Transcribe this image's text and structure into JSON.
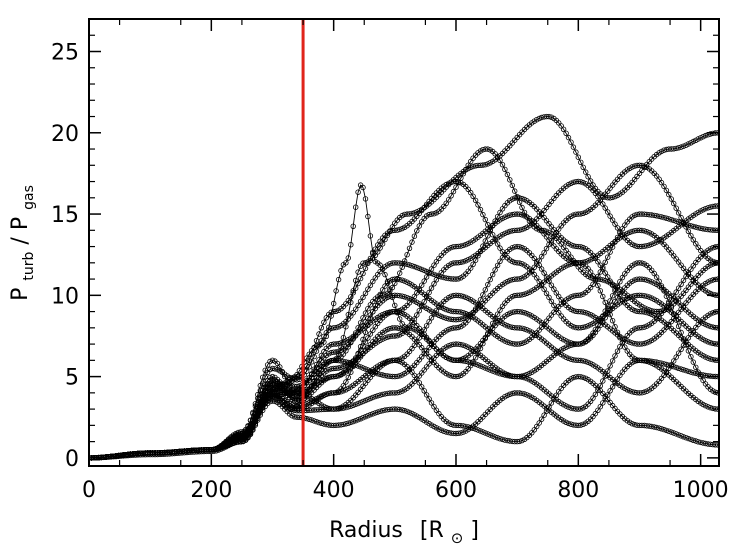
{
  "chart_data": {
    "type": "scatter",
    "title": "",
    "xlabel": {
      "main": "Radius",
      "open": "[R",
      "sub": "⊙",
      "close": "]"
    },
    "ylabel": {
      "p1": "P",
      "sub1": "turb",
      "slash": "/",
      "p2": "P",
      "sub2": "gas"
    },
    "xlim": [
      0,
      1030
    ],
    "ylim": [
      -0.5,
      27
    ],
    "xticks": [
      0,
      200,
      400,
      600,
      800,
      1000
    ],
    "yticks": [
      0,
      5,
      10,
      15,
      20,
      25
    ],
    "xtick_labels": [
      "0",
      "200",
      "400",
      "600",
      "800",
      "1000"
    ],
    "ytick_labels": [
      "0",
      "5",
      "10",
      "15",
      "20",
      "25"
    ],
    "marker": "open-circle",
    "grid": false,
    "reference_line": {
      "x": 350,
      "color": "#e0241b"
    },
    "series_profiles": [
      {
        "x": [
          0,
          100,
          200,
          250,
          300,
          340,
          400,
          500,
          600,
          700,
          800,
          900,
          1030
        ],
        "y": [
          0,
          0.3,
          0.5,
          1.5,
          4.5,
          4,
          5,
          9,
          13,
          15,
          12,
          14,
          10
        ]
      },
      {
        "x": [
          0,
          100,
          200,
          250,
          300,
          330,
          400,
          480,
          560,
          650,
          740,
          830,
          930,
          1030
        ],
        "y": [
          0,
          0.3,
          0.5,
          1.2,
          3.8,
          4,
          6,
          10,
          15,
          19,
          14,
          11,
          9,
          12
        ]
      },
      {
        "x": [
          0,
          100,
          200,
          250,
          300,
          330,
          400,
          450,
          520,
          640,
          750,
          850,
          950,
          1030
        ],
        "y": [
          0,
          0.3,
          0.5,
          1,
          4,
          3,
          6,
          12,
          15,
          18,
          21,
          16,
          19,
          20
        ]
      },
      {
        "x": [
          0,
          100,
          200,
          250,
          300,
          320,
          380,
          420,
          445,
          470,
          520,
          600,
          700,
          800,
          900,
          1030
        ],
        "y": [
          0,
          0.3,
          0.5,
          1.3,
          5,
          4.5,
          7,
          12,
          16.8,
          12,
          8,
          6,
          9,
          7,
          11,
          8
        ]
      },
      {
        "x": [
          0,
          100,
          200,
          250,
          300,
          340,
          400,
          500,
          600,
          700,
          800,
          900,
          1030
        ],
        "y": [
          0,
          0.2,
          0.4,
          1,
          3.5,
          2.5,
          2,
          3,
          1.5,
          4,
          2,
          6,
          3
        ]
      },
      {
        "x": [
          0,
          100,
          200,
          250,
          300,
          340,
          400,
          500,
          600,
          700,
          800,
          900,
          1030
        ],
        "y": [
          0,
          0.3,
          0.5,
          1.5,
          6,
          4,
          3,
          6,
          2,
          1,
          5,
          2,
          0.8
        ]
      },
      {
        "x": [
          0,
          100,
          200,
          250,
          300,
          340,
          400,
          500,
          600,
          700,
          800,
          900,
          1030
        ],
        "y": [
          0,
          0.3,
          0.5,
          1.2,
          4.5,
          3.5,
          5,
          8,
          5,
          10,
          12,
          6,
          5
        ]
      },
      {
        "x": [
          0,
          100,
          200,
          250,
          300,
          340,
          400,
          500,
          600,
          700,
          800,
          900,
          1030
        ],
        "y": [
          0,
          0.3,
          0.5,
          1.4,
          4,
          3,
          4,
          11,
          9,
          7,
          10,
          15,
          14
        ]
      },
      {
        "x": [
          0,
          100,
          200,
          250,
          300,
          340,
          400,
          500,
          600,
          700,
          800,
          900,
          1030
        ],
        "y": [
          0,
          0.3,
          0.5,
          1,
          4.2,
          5,
          9,
          14,
          17,
          12,
          8,
          10,
          7
        ]
      },
      {
        "x": [
          0,
          100,
          200,
          250,
          300,
          340,
          400,
          500,
          600,
          700,
          800,
          900,
          1030
        ],
        "y": [
          0,
          0.3,
          0.5,
          1.1,
          3.9,
          3.2,
          4,
          6,
          10,
          8,
          6,
          4,
          9
        ]
      },
      {
        "x": [
          0,
          100,
          200,
          250,
          300,
          340,
          400,
          500,
          600,
          700,
          800,
          900,
          1030
        ],
        "y": [
          0,
          0.3,
          0.5,
          1.3,
          4.8,
          3.6,
          6,
          5,
          8,
          13,
          9,
          7,
          11
        ]
      },
      {
        "x": [
          0,
          100,
          200,
          250,
          300,
          340,
          400,
          500,
          600,
          700,
          800,
          900,
          1030
        ],
        "y": [
          0,
          0.3,
          0.5,
          1.2,
          4.1,
          4.2,
          7,
          9,
          6,
          5,
          7,
          12,
          4
        ]
      },
      {
        "x": [
          0,
          100,
          200,
          250,
          300,
          340,
          400,
          500,
          600,
          700,
          800,
          900,
          1030
        ],
        "y": [
          0,
          0.3,
          0.5,
          1.6,
          5.5,
          4.8,
          8,
          12,
          11,
          16,
          13,
          9,
          6
        ]
      },
      {
        "x": [
          0,
          100,
          200,
          250,
          300,
          340,
          400,
          500,
          600,
          700,
          800,
          900,
          1030
        ],
        "y": [
          0,
          0.3,
          0.5,
          1,
          3.7,
          2.9,
          3,
          4,
          7,
          5,
          3,
          8,
          13
        ]
      },
      {
        "x": [
          0,
          100,
          200,
          250,
          300,
          340,
          400,
          500,
          600,
          700,
          800,
          900,
          1030
        ],
        "y": [
          0,
          0.3,
          0.5,
          1.2,
          4.3,
          3.8,
          5.5,
          7.5,
          12,
          14,
          17,
          13,
          15.5
        ]
      },
      {
        "x": [
          0,
          100,
          200,
          250,
          300,
          340,
          400,
          500,
          600,
          700,
          800,
          900,
          1030
        ],
        "y": [
          0,
          0.3,
          0.5,
          1.3,
          4.6,
          4.4,
          6.5,
          10,
          8.5,
          11,
          15,
          18,
          12
        ]
      }
    ]
  }
}
